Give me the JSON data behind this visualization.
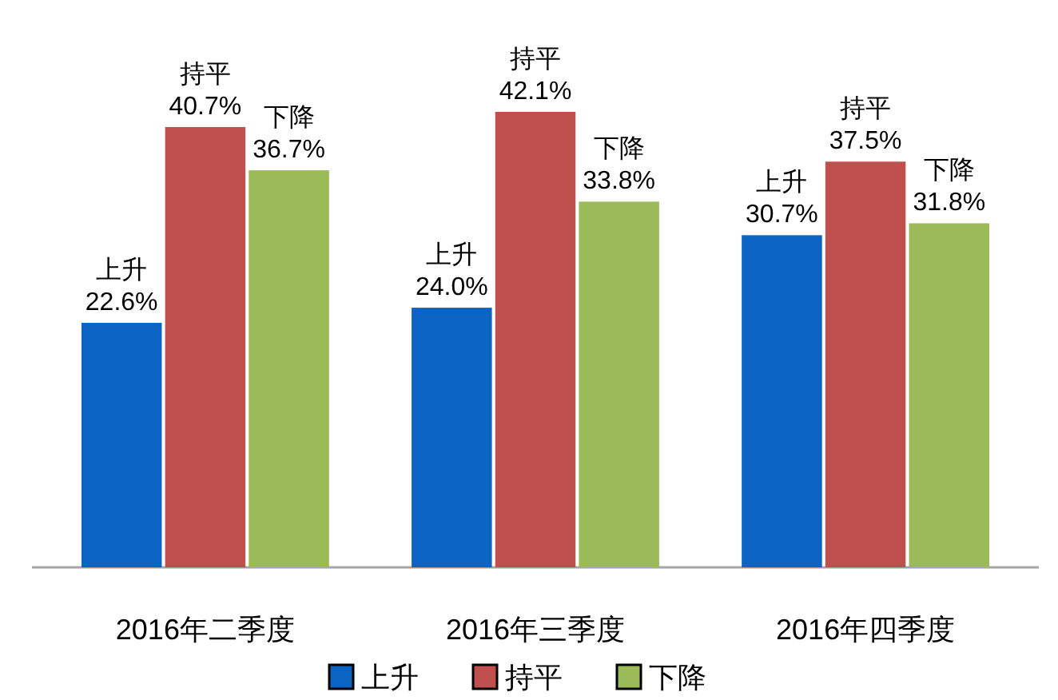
{
  "chart_data": {
    "type": "bar",
    "categories": [
      "2016年二季度",
      "2016年三季度",
      "2016年四季度"
    ],
    "series": [
      {
        "name": "上升",
        "color": "#0b63c4",
        "values": [
          22.6,
          24.0,
          30.7
        ],
        "value_labels": [
          "22.6%",
          "24.0%",
          "30.7%"
        ]
      },
      {
        "name": "持平",
        "color": "#c0504d",
        "values": [
          40.7,
          42.1,
          37.5
        ],
        "value_labels": [
          "40.7%",
          "42.1%",
          "37.5%"
        ]
      },
      {
        "name": "下降",
        "color": "#9bbb59",
        "values": [
          36.7,
          33.8,
          31.8
        ],
        "value_labels": [
          "36.7%",
          "33.8%",
          "31.8%"
        ]
      }
    ],
    "legend": "bottom"
  }
}
